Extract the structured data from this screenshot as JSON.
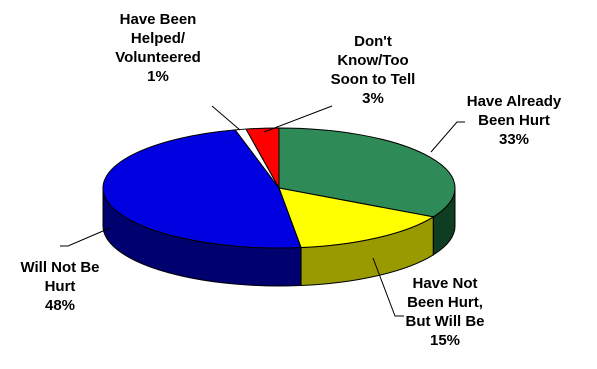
{
  "chart_data": {
    "type": "pie",
    "style": "3d",
    "categories": [
      "Have Already Been Hurt",
      "Have Not Been Hurt, But Will Be",
      "Will Not Be Hurt",
      "Have Been Helped/ Volunteered",
      "Don't Know/Too Soon to Tell"
    ],
    "values": [
      33,
      15,
      48,
      1,
      3
    ],
    "unit": "%",
    "colors": [
      "#2e8b57",
      "#ffff00",
      "#0000e0",
      "#ffffff",
      "#ff0000"
    ],
    "side_colors": [
      "#0f3d22",
      "#999900",
      "#00006e",
      "#bdbdbd",
      "#990000"
    ],
    "labels": [
      {
        "lines": [
          "Have Already",
          "Been Hurt"
        ],
        "value_text": "33%"
      },
      {
        "lines": [
          "Have Not",
          "Been Hurt,",
          "But Will Be"
        ],
        "value_text": "15%"
      },
      {
        "lines": [
          "Will Not Be",
          "Hurt"
        ],
        "value_text": "48%"
      },
      {
        "lines": [
          "Have Been",
          "Helped/",
          "Volunteered"
        ],
        "value_text": "1%"
      },
      {
        "lines": [
          "Don't",
          "Know/Too",
          "Soon to Tell"
        ],
        "value_text": "3%"
      }
    ],
    "legend": "none"
  }
}
